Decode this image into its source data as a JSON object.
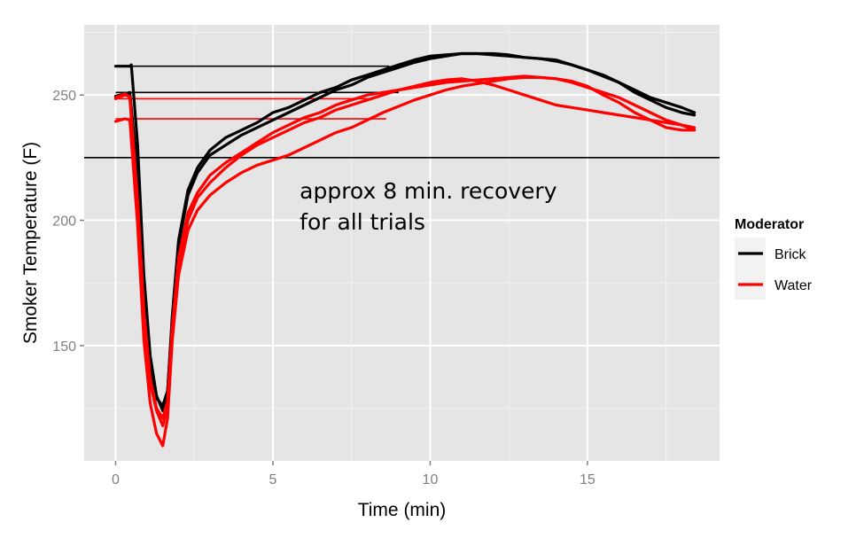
{
  "chart_data": {
    "type": "line",
    "xlabel": "Time (min)",
    "ylabel": "Smoker Temperature (F)",
    "xlim": [
      -1,
      19.2
    ],
    "ylim": [
      104,
      278
    ],
    "x_ticks": [
      0,
      5,
      10,
      15
    ],
    "x_tick_labels": [
      "0",
      "5",
      "10",
      "15"
    ],
    "y_ticks": [
      150,
      200,
      250
    ],
    "y_tick_labels": [
      "150",
      "200",
      "250"
    ],
    "grid": true,
    "background": "#e5e5e5",
    "legend": {
      "title": "Moderator",
      "placement": "right",
      "entries": [
        {
          "label": "Brick",
          "color": "#000000"
        },
        {
          "label": "Water",
          "color": "#ff0000"
        }
      ]
    },
    "reference_line": {
      "y": 225,
      "color": "#000000"
    },
    "annotation": {
      "lines": [
        "approx 8 min. recovery",
        "for all trials"
      ],
      "x": 5.85,
      "y": 209
    },
    "series": [
      {
        "moderator": "Brick",
        "color": "#000000",
        "start_line": {
          "y": 261.5,
          "x_end": 8.7
        },
        "x": [
          0,
          0.45,
          0.5,
          0.7,
          0.9,
          1.1,
          1.3,
          1.5,
          1.65,
          1.8,
          2.0,
          2.3,
          2.6,
          3.0,
          3.5,
          4.0,
          4.5,
          5.0,
          5.5,
          6.0,
          6.5,
          7.0,
          7.5,
          8.0,
          8.5,
          9.0,
          9.5,
          10.0,
          10.5,
          11.0,
          11.5,
          12.0,
          12.5,
          13.0,
          13.5,
          14.0,
          14.5,
          15.0,
          15.5,
          16.0,
          16.5,
          17.0,
          17.5,
          18.0,
          18.4
        ],
        "y": [
          261.5,
          261.5,
          262,
          230,
          178,
          146,
          130,
          124,
          131,
          162,
          192,
          212,
          221,
          228,
          233,
          236,
          239,
          243,
          245,
          248,
          251,
          253,
          256,
          258,
          260,
          262,
          264,
          265.5,
          266,
          266.5,
          266.5,
          266,
          265.5,
          265,
          264.5,
          264,
          262,
          260,
          258,
          255,
          252,
          249,
          247,
          245,
          243
        ]
      },
      {
        "moderator": "Brick",
        "color": "#000000",
        "start_line": {
          "y": 251,
          "x_end": 9.0
        },
        "x": [
          0,
          0.3,
          0.45,
          0.7,
          0.9,
          1.1,
          1.3,
          1.5,
          1.65,
          1.8,
          2.0,
          2.3,
          2.6,
          3.0,
          3.5,
          4.0,
          4.5,
          5.0,
          5.5,
          6.0,
          6.5,
          7.0,
          7.5,
          8.0,
          8.5,
          9.0,
          9.5,
          10.0,
          10.5,
          11.0,
          11.5,
          12.0,
          12.5,
          13.0,
          13.5,
          14.0,
          14.5,
          15.0,
          15.5,
          16.0,
          16.5,
          17.0,
          17.5,
          18.0,
          18.4
        ],
        "y": [
          249.5,
          250.5,
          251,
          218,
          172,
          143,
          129,
          126,
          132,
          160,
          190,
          210,
          219,
          226,
          230,
          234,
          237,
          240,
          243,
          246,
          249,
          252,
          254,
          257,
          259,
          261,
          263,
          264.5,
          265.5,
          266.5,
          266.5,
          266.5,
          266,
          265,
          264.5,
          263.5,
          262,
          260,
          257.5,
          255,
          251,
          248,
          245,
          243,
          242
        ]
      },
      {
        "moderator": "Water",
        "color": "#ff0000",
        "start_line": {
          "y": 248.5,
          "x_end": 8.1
        },
        "x": [
          0,
          0.3,
          0.45,
          0.7,
          0.9,
          1.1,
          1.3,
          1.5,
          1.65,
          1.8,
          2.0,
          2.3,
          2.6,
          3.0,
          3.5,
          4.0,
          4.5,
          5.0,
          5.5,
          6.0,
          6.5,
          7.0,
          7.5,
          8.0,
          8.5,
          9.0,
          9.5,
          10.0,
          10.5,
          11.0,
          11.5,
          12.0,
          12.5,
          13.0,
          13.5,
          14.0,
          14.5,
          15.0,
          15.5,
          16.0,
          16.5,
          17.0,
          17.5,
          18.0,
          18.4
        ],
        "y": [
          249,
          250.5,
          249,
          205,
          160,
          135,
          124,
          118,
          126,
          155,
          182,
          200,
          209,
          215,
          221,
          226,
          230,
          233,
          236,
          239,
          241,
          244,
          246,
          248,
          250,
          252,
          253.5,
          255,
          256,
          256.5,
          255.5,
          254,
          252,
          250,
          248,
          246,
          245,
          244,
          243,
          242,
          241,
          240,
          239,
          238,
          237
        ]
      },
      {
        "moderator": "Water",
        "color": "#ff0000",
        "start_line": {
          "y": 240.5,
          "x_end": 8.6
        },
        "x": [
          0,
          0.3,
          0.45,
          0.7,
          0.9,
          1.1,
          1.3,
          1.5,
          1.65,
          1.8,
          2.0,
          2.3,
          2.6,
          3.0,
          3.5,
          4.0,
          4.5,
          5.0,
          5.5,
          6.0,
          6.5,
          7.0,
          7.5,
          8.0,
          8.5,
          9.0,
          9.5,
          10.0,
          10.5,
          11.0,
          11.5,
          12.0,
          12.5,
          13.0,
          13.5,
          14.0,
          14.5,
          15.0,
          15.5,
          16.0,
          16.5,
          17.0,
          17.5,
          18.0,
          18.4
        ],
        "y": [
          239.5,
          240.5,
          240,
          198,
          152,
          127,
          115,
          110,
          121,
          152,
          178,
          196,
          204,
          210,
          215,
          219,
          222,
          224,
          226,
          229,
          232,
          235,
          237,
          240,
          243,
          245.5,
          248,
          250,
          252,
          253.5,
          254.5,
          255.5,
          256.5,
          257,
          257,
          256.5,
          255,
          253,
          251,
          249,
          246,
          243,
          240,
          238,
          236
        ]
      },
      {
        "moderator": "Water",
        "color": "#ff0000",
        "start_line": null,
        "x": [
          0,
          0.3,
          0.45,
          0.7,
          0.9,
          1.1,
          1.3,
          1.5,
          1.65,
          1.8,
          2.0,
          2.3,
          2.6,
          3.0,
          3.5,
          4.0,
          4.5,
          5.0,
          5.5,
          6.0,
          6.5,
          7.0,
          7.5,
          8.0,
          8.5,
          9.0,
          9.5,
          10.0,
          10.5,
          11.0,
          11.5,
          12.0,
          12.5,
          13.0,
          13.5,
          14.0,
          14.5,
          15.0,
          15.5,
          16.0,
          16.5,
          17.0,
          17.5,
          18.0,
          18.4
        ],
        "y": [
          248.5,
          250,
          249.5,
          208,
          164,
          137,
          125,
          121,
          128,
          157,
          185,
          203,
          211,
          218,
          223,
          227,
          231,
          235,
          238,
          241,
          243,
          246,
          248,
          250,
          251,
          252,
          253,
          254,
          255,
          255.5,
          256,
          256.5,
          257,
          257.5,
          257,
          256.5,
          255.5,
          253.5,
          250,
          247,
          243,
          240,
          237,
          236,
          236
        ]
      }
    ]
  }
}
